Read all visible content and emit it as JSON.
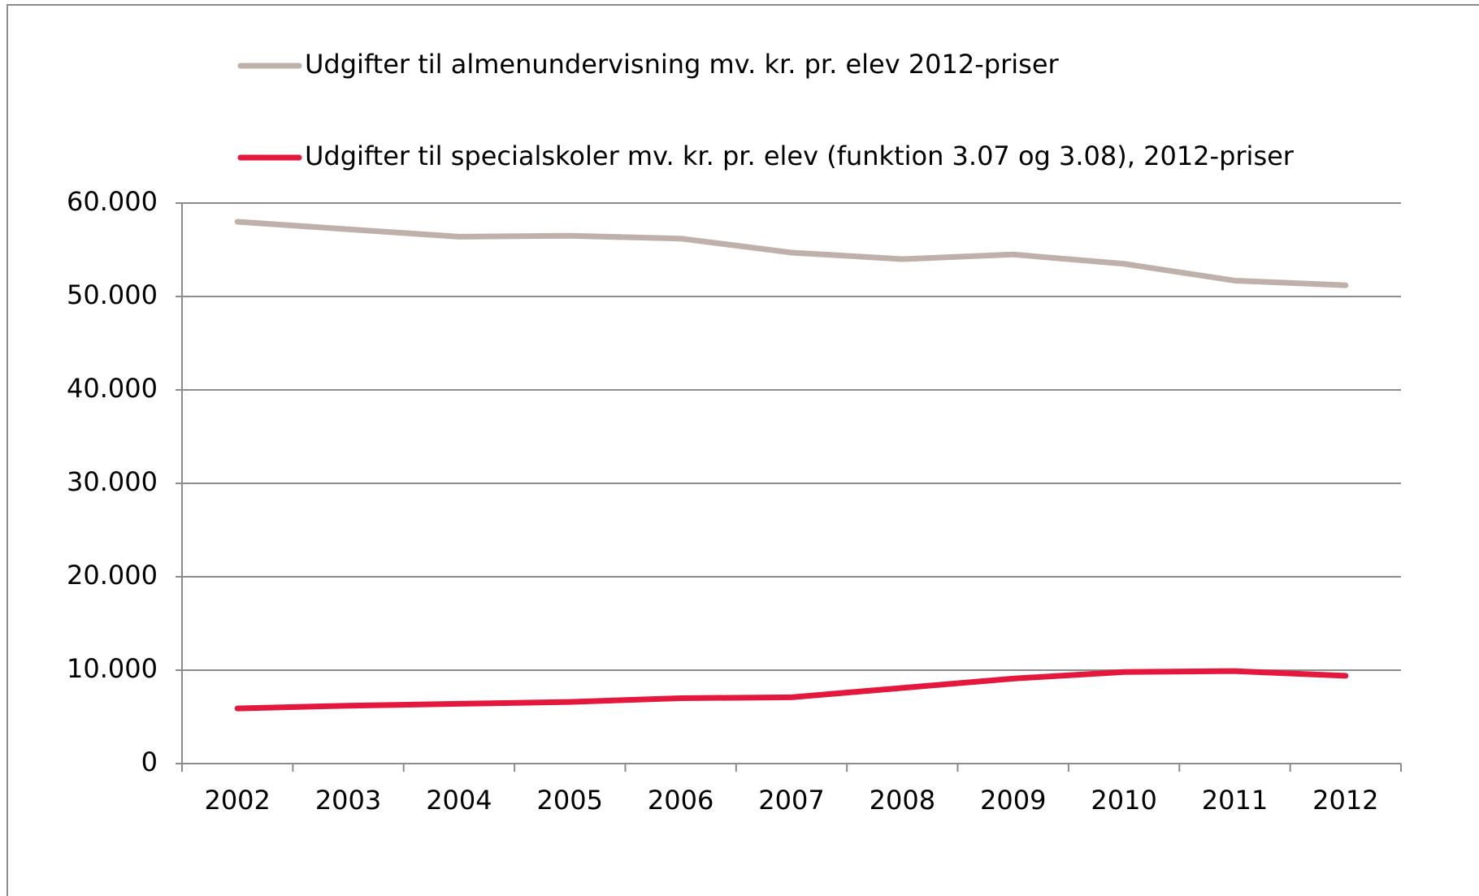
{
  "chart_data": {
    "type": "line",
    "categories": [
      "2002",
      "2003",
      "2004",
      "2005",
      "2006",
      "2007",
      "2008",
      "2009",
      "2010",
      "2011",
      "2012"
    ],
    "series": [
      {
        "name": "Udgifter til almenundervisning mv. kr. pr. elev 2012-priser",
        "color": "#bfb1aa",
        "values": [
          58000,
          57200,
          56400,
          56500,
          56200,
          54700,
          54000,
          54500,
          53500,
          51700,
          51200
        ]
      },
      {
        "name": "Udgifter til specialskoler mv. kr.  pr. elev (funktion 3.07 og 3.08), 2012-priser",
        "color": "#e4183d",
        "values": [
          5900,
          6200,
          6400,
          6600,
          7000,
          7100,
          8100,
          9100,
          9800,
          9900,
          9400
        ]
      }
    ],
    "ylim": [
      0,
      60000
    ],
    "yticks": [
      0,
      {
        "value": 10000,
        "label": "10.000"
      },
      {
        "value": 20000,
        "label": "20.000"
      },
      {
        "value": 30000,
        "label": "30.000"
      },
      {
        "value": 40000,
        "label": "40.000"
      },
      {
        "value": 50000,
        "label": "50.000"
      },
      {
        "value": 60000,
        "label": "60.000"
      }
    ],
    "grid": true,
    "legend": "top"
  }
}
